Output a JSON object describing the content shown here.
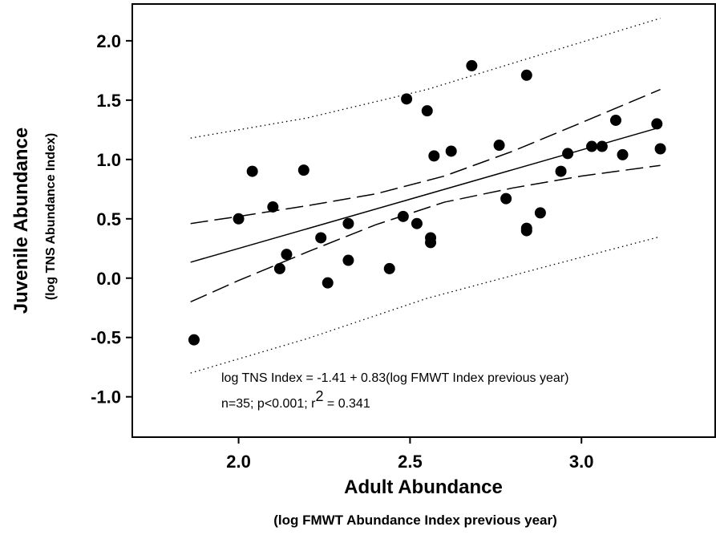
{
  "chart_data": {
    "type": "scatter",
    "x_title": "Adult Abundance",
    "x_subtitle": "(log FMWT Abundance Index previous year)",
    "y_title": "Juvenile Abundance",
    "y_subtitle": "(log TNS Abundance Index)",
    "x": [
      1.87,
      2.0,
      2.04,
      2.1,
      2.12,
      2.14,
      2.19,
      2.24,
      2.26,
      2.32,
      2.32,
      2.44,
      2.48,
      2.49,
      2.52,
      2.55,
      2.56,
      2.56,
      2.57,
      2.62,
      2.68,
      2.76,
      2.78,
      2.84,
      2.84,
      2.84,
      2.88,
      2.94,
      2.96,
      3.03,
      3.06,
      3.1,
      3.12,
      3.22,
      3.23
    ],
    "values": [
      -0.52,
      0.5,
      0.9,
      0.6,
      0.08,
      0.2,
      0.91,
      0.34,
      -0.04,
      0.46,
      0.15,
      0.08,
      0.52,
      1.51,
      0.46,
      1.41,
      0.34,
      0.3,
      1.03,
      1.07,
      1.79,
      1.12,
      0.67,
      1.71,
      0.42,
      0.4,
      0.55,
      0.9,
      1.05,
      1.11,
      1.11,
      1.33,
      1.04,
      1.3,
      1.09
    ],
    "color": "#000000",
    "xlim": [
      1.69,
      3.39
    ],
    "xticks": [
      {
        "value": 2,
        "label": "2.0"
      },
      2.5,
      {
        "value": 3,
        "label": "3.0"
      }
    ],
    "ylim": [
      -1.34,
      2.31
    ],
    "yticks": [
      {
        "value": -1,
        "label": "-1.0"
      },
      -0.5,
      {
        "value": 0,
        "label": "0.0"
      },
      0.5,
      {
        "value": 1,
        "label": "1.0"
      },
      1.5,
      {
        "value": 2,
        "label": "2.0"
      }
    ],
    "lines": [
      {
        "type": "line",
        "style": "solid",
        "x": [
          1.86,
          3.23
        ],
        "values": [
          0.134,
          1.271
        ]
      },
      {
        "type": "line",
        "style": "dashed",
        "x": [
          1.86,
          2.0,
          2.2,
          2.4,
          2.6,
          2.8,
          3.0,
          3.23
        ],
        "values": [
          0.46,
          0.52,
          0.61,
          0.71,
          0.86,
          1.07,
          1.31,
          1.59
        ]
      },
      {
        "type": "line",
        "style": "dashed",
        "x": [
          1.86,
          2.0,
          2.2,
          2.4,
          2.6,
          2.8,
          3.0,
          3.23
        ],
        "values": [
          -0.2,
          -0.02,
          0.22,
          0.45,
          0.64,
          0.76,
          0.86,
          0.95
        ]
      },
      {
        "type": "line",
        "style": "dotted",
        "x": [
          1.86,
          2.2,
          2.55,
          2.9,
          3.23
        ],
        "values": [
          1.18,
          1.35,
          1.59,
          1.9,
          2.19
        ]
      },
      {
        "type": "line",
        "style": "dotted",
        "x": [
          1.86,
          2.2,
          2.55,
          2.9,
          3.23
        ],
        "values": [
          -0.8,
          -0.51,
          -0.17,
          0.1,
          0.35
        ]
      }
    ],
    "equation": "log TNS Index = -1.41 + 0.83(log FMWT Index previous year)",
    "stats": [
      "n=35; p<0.001; r",
      "2",
      " = 0.341"
    ]
  }
}
